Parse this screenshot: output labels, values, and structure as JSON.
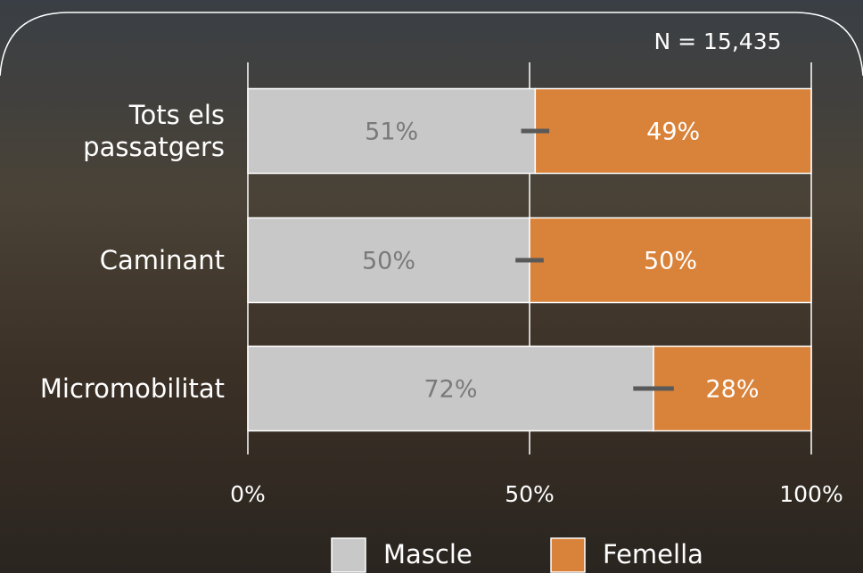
{
  "chart_data": {
    "type": "bar",
    "orientation": "horizontal",
    "stacked": true,
    "annotation": "N = 15,435",
    "categories": [
      "Tots els passatgers",
      "Caminant",
      "Micromobilitat"
    ],
    "series": [
      {
        "name": "Mascle",
        "color": "#c8c8c8",
        "values": [
          51,
          50,
          72
        ],
        "value_labels": [
          "51%",
          "50%",
          "72%"
        ],
        "errors": [
          2.5,
          2.5,
          3.6
        ],
        "label_color": "#7a7a7a"
      },
      {
        "name": "Femella",
        "color": "#d9823a",
        "values": [
          49,
          50,
          28
        ],
        "value_labels": [
          "49%",
          "50%",
          "28%"
        ],
        "label_color": "#ffffff"
      }
    ],
    "xlim": [
      0,
      100
    ],
    "xticks": [
      {
        "value": 0,
        "label": "0%"
      },
      {
        "value": 50,
        "label": "50%"
      },
      {
        "value": 100,
        "label": "100%"
      }
    ],
    "grid": true,
    "legend": "bottom"
  }
}
